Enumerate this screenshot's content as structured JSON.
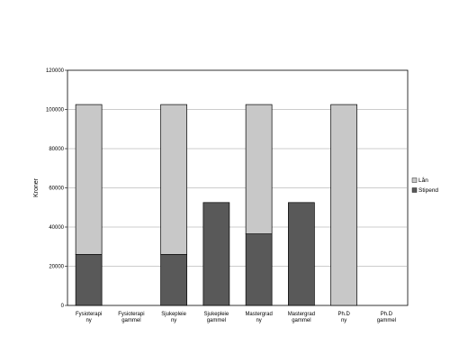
{
  "chart_data": {
    "type": "bar",
    "stacked": true,
    "categories": [
      [
        "Fysioterapi",
        "ny"
      ],
      [
        "Fysioterapi",
        "gammel"
      ],
      [
        "Sjukepleie",
        "ny"
      ],
      [
        "Sjukepleie",
        "gammel"
      ],
      [
        "Mastergrad",
        "ny"
      ],
      [
        "Mastergrad",
        "gammel"
      ],
      [
        "Ph.D",
        "ny"
      ],
      [
        "Ph.D",
        "gammel"
      ]
    ],
    "series": [
      {
        "name": "Stipend",
        "values": [
          26000,
          0,
          26000,
          52500,
          36500,
          52500,
          0,
          0
        ],
        "color": "#595959"
      },
      {
        "name": "Lån",
        "values": [
          76500,
          0,
          76500,
          0,
          66000,
          0,
          102500,
          0
        ],
        "color": "#c8c8c8"
      }
    ],
    "legend_order": [
      "Lån",
      "Stipend"
    ],
    "ylabel": "Kroner",
    "ylim": [
      0,
      120000
    ],
    "yticks": [
      0,
      20000,
      40000,
      60000,
      80000,
      100000,
      120000
    ],
    "grid": true,
    "legend_position": "right"
  }
}
